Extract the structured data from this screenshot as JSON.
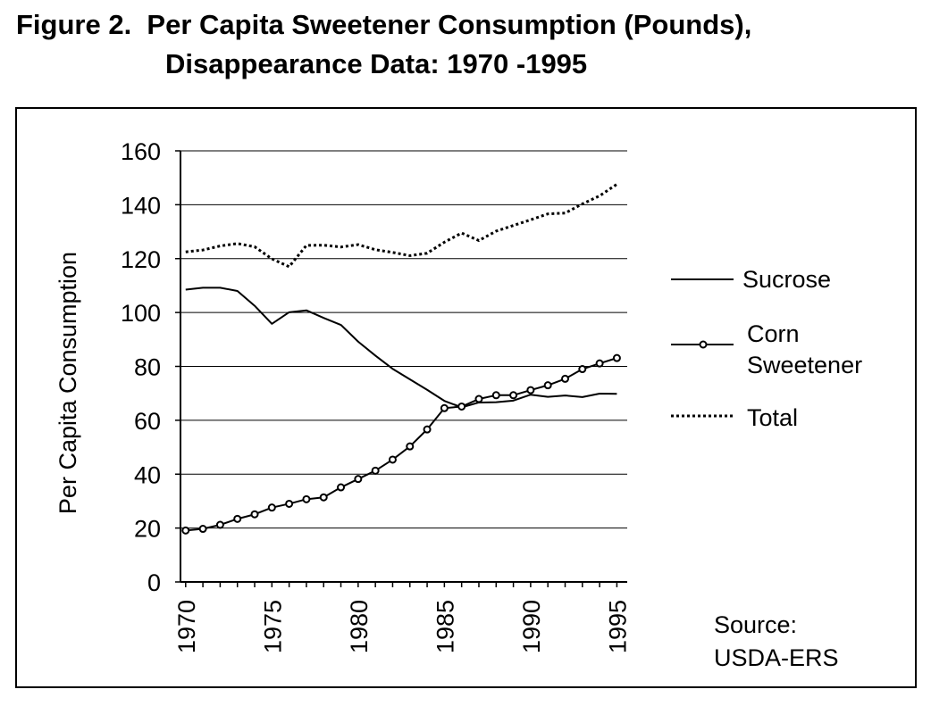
{
  "title": {
    "line1": "Figure 2.  Per Capita Sweetener Consumption (Pounds),",
    "line2": "Disappearance Data: 1970 -1995"
  },
  "chart_data": {
    "type": "line",
    "title": "Figure 2.  Per Capita Sweetener Consumption (Pounds), Disappearance Data: 1970 -1995",
    "xlabel": "",
    "ylabel": "Per Capita Consumption",
    "x": [
      1970,
      1971,
      1972,
      1973,
      1974,
      1975,
      1976,
      1977,
      1978,
      1979,
      1980,
      1981,
      1982,
      1983,
      1984,
      1985,
      1986,
      1987,
      1988,
      1989,
      1990,
      1991,
      1992,
      1993,
      1994,
      1995
    ],
    "xticks": [
      "1970",
      "1975",
      "1980",
      "1985",
      "1990",
      "1995"
    ],
    "xtick_values": [
      1970,
      1975,
      1980,
      1985,
      1990,
      1995
    ],
    "ylim": [
      0,
      160
    ],
    "yticks": [
      0,
      20,
      40,
      60,
      80,
      100,
      120,
      140,
      160
    ],
    "grid": true,
    "series": [
      {
        "name": "Sucrose",
        "style": "solid",
        "values": [
          108.5,
          109.2,
          109.2,
          108,
          102.5,
          95.8,
          100.1,
          100.8,
          98,
          95.4,
          89.2,
          84,
          79.1,
          75.2,
          71.3,
          67.2,
          64.8,
          66.6,
          66.7,
          67.3,
          69.5,
          68.7,
          69.2,
          68.6,
          69.9,
          69.8
        ]
      },
      {
        "name": "Corn Sweetener",
        "style": "solid-markers",
        "values": [
          19.1,
          19.7,
          21.2,
          23.4,
          25.1,
          27.6,
          29,
          30.7,
          31.4,
          35.1,
          38.2,
          41.3,
          45.4,
          50.3,
          56.6,
          64.5,
          65.1,
          67.9,
          69.3,
          69.3,
          71.2,
          73,
          75.4,
          79,
          81.1,
          83.1
        ]
      },
      {
        "name": "Total",
        "style": "dotted",
        "values": [
          122.5,
          123.2,
          124.7,
          125.6,
          124.4,
          119.9,
          117,
          124.9,
          125,
          124.3,
          125.2,
          123.3,
          122.3,
          121.1,
          122,
          126.1,
          129.5,
          126.7,
          130.2,
          132.3,
          134.4,
          136.6,
          136.9,
          140.3,
          143.3,
          147.6
        ]
      }
    ],
    "legend": [
      "Sucrose",
      "Corn Sweetener",
      "Total"
    ],
    "legend_position": "right",
    "annotations": [
      "Source:",
      "USDA-ERS"
    ]
  },
  "legend": {
    "sucrose": "Sucrose",
    "corn_line1": "Corn",
    "corn_line2": "Sweetener",
    "total": "Total"
  },
  "source": {
    "line1": "Source:",
    "line2": "USDA-ERS"
  }
}
